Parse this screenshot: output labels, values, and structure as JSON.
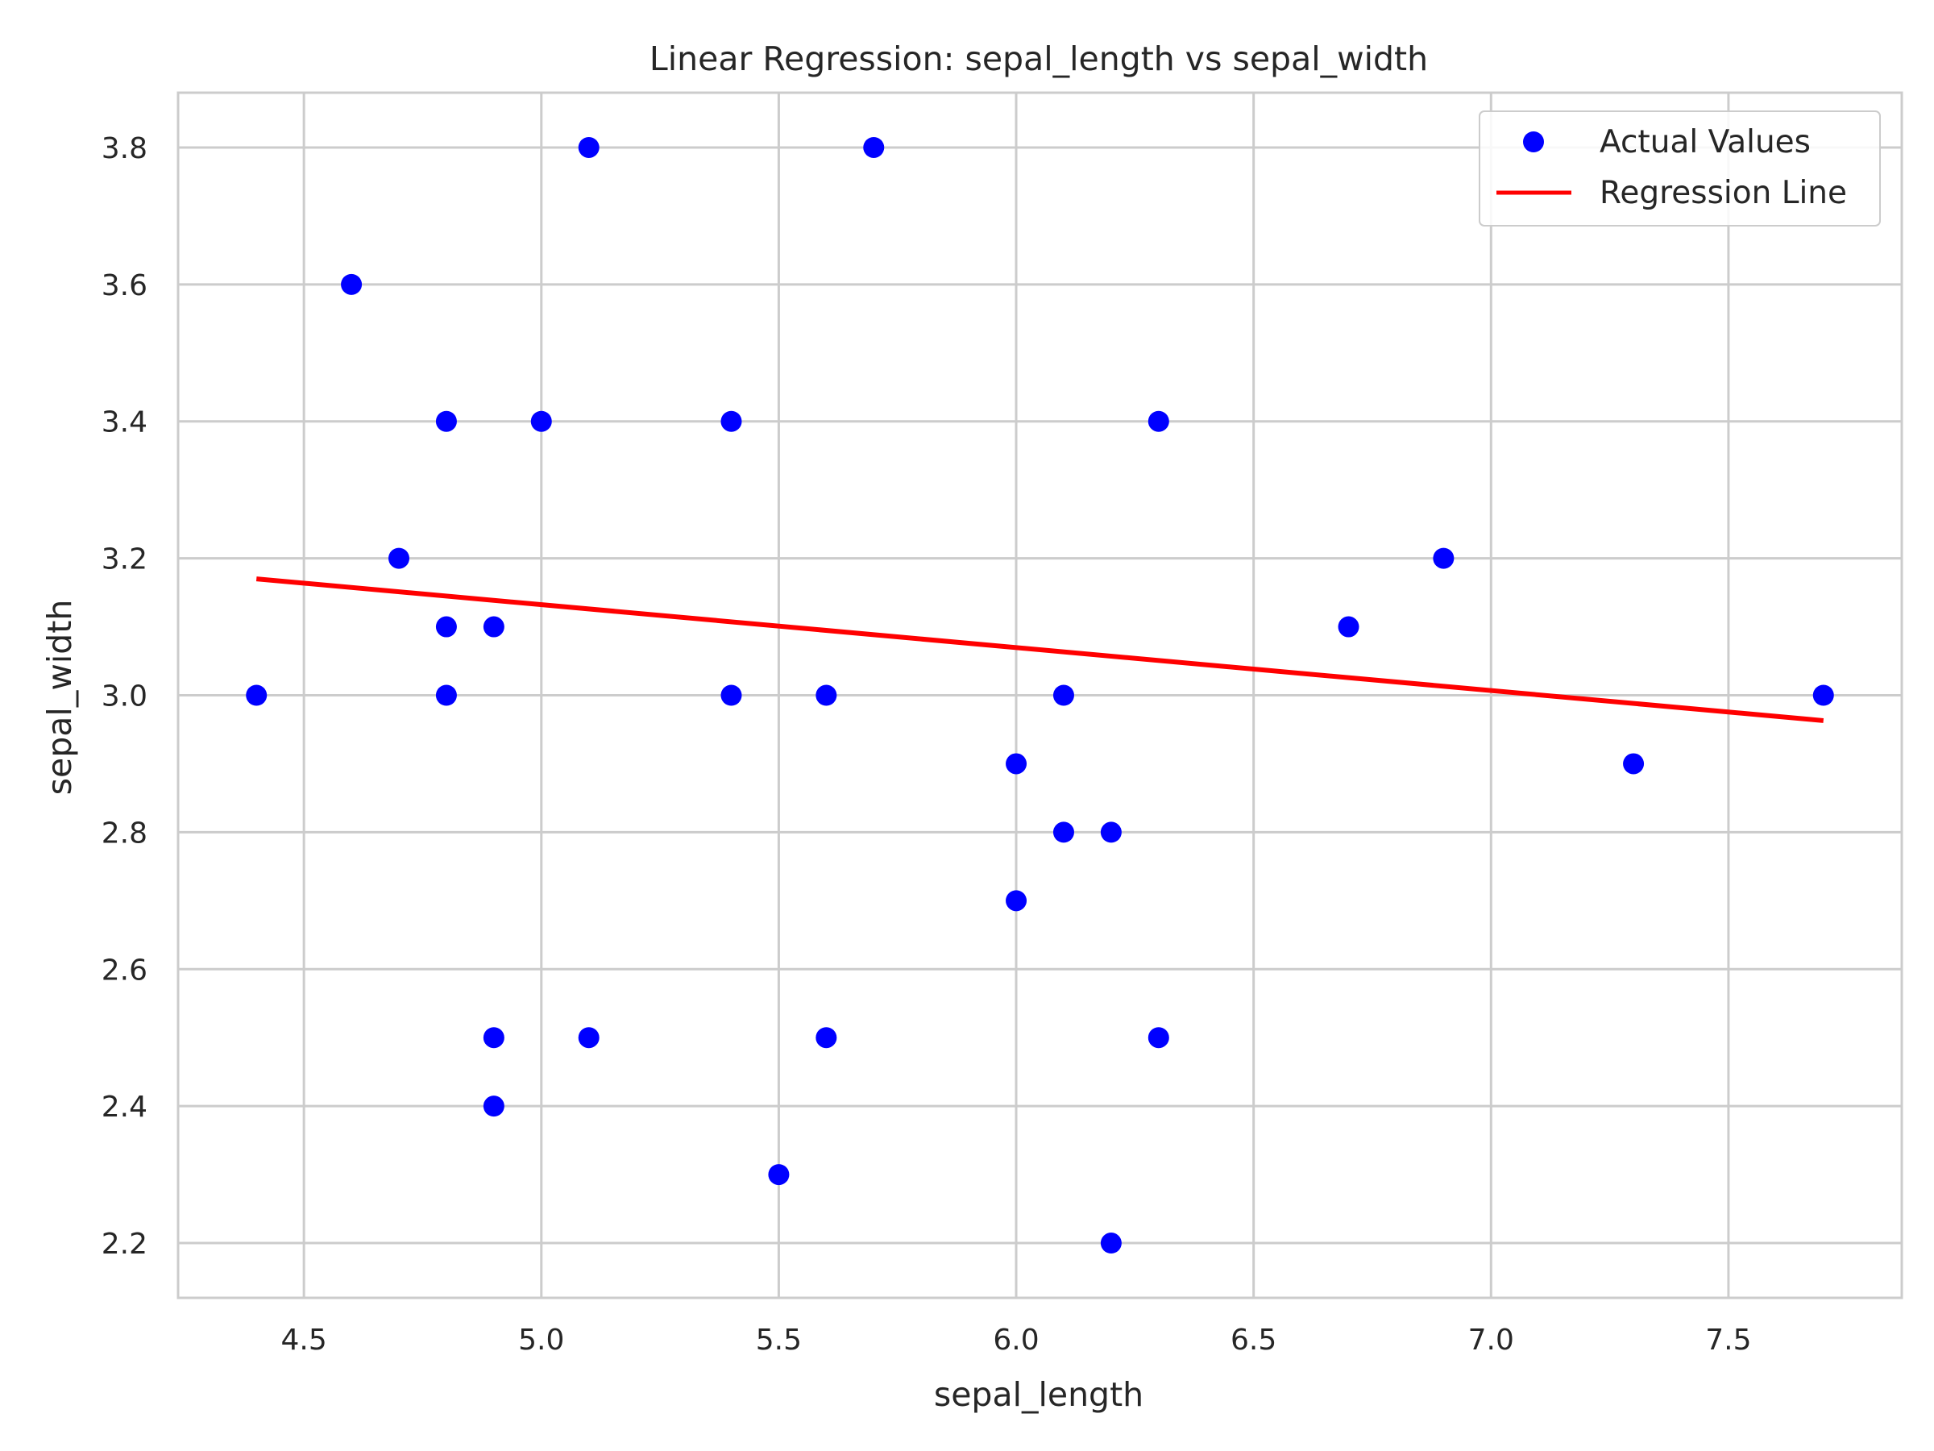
{
  "chart_data": {
    "type": "scatter",
    "title": "Linear Regression: sepal_length vs sepal_width",
    "xlabel": "sepal_length",
    "ylabel": "sepal_width",
    "xlim": [
      4.235,
      7.865
    ],
    "ylim": [
      2.12,
      3.88
    ],
    "xticks": [
      "4.5",
      "5.0",
      "5.5",
      "6.0",
      "6.5",
      "7.0",
      "7.5"
    ],
    "yticks": [
      "2.2",
      "2.4",
      "2.6",
      "2.8",
      "3.0",
      "3.2",
      "3.4",
      "3.6",
      "3.8"
    ],
    "grid": true,
    "legend_position": "top-right",
    "series": [
      {
        "name": "Actual Values",
        "kind": "scatter",
        "color": "#0000ff",
        "points": [
          [
            5.1,
            3.8
          ],
          [
            5.7,
            3.8
          ],
          [
            4.6,
            3.6
          ],
          [
            4.8,
            3.4
          ],
          [
            5.0,
            3.4
          ],
          [
            5.4,
            3.4
          ],
          [
            6.3,
            3.4
          ],
          [
            4.7,
            3.2
          ],
          [
            6.9,
            3.2
          ],
          [
            4.8,
            3.1
          ],
          [
            4.9,
            3.1
          ],
          [
            6.7,
            3.1
          ],
          [
            4.4,
            3.0
          ],
          [
            4.8,
            3.0
          ],
          [
            5.4,
            3.0
          ],
          [
            5.6,
            3.0
          ],
          [
            6.1,
            3.0
          ],
          [
            7.7,
            3.0
          ],
          [
            6.0,
            2.9
          ],
          [
            7.3,
            2.9
          ],
          [
            6.1,
            2.8
          ],
          [
            6.2,
            2.8
          ],
          [
            6.0,
            2.7
          ],
          [
            4.9,
            2.5
          ],
          [
            5.1,
            2.5
          ],
          [
            5.6,
            2.5
          ],
          [
            6.3,
            2.5
          ],
          [
            4.9,
            2.4
          ],
          [
            5.5,
            2.3
          ],
          [
            6.2,
            2.2
          ]
        ]
      },
      {
        "name": "Regression Line",
        "kind": "line",
        "color": "#ff0000",
        "x": [
          4.4,
          7.7
        ],
        "y": [
          3.17,
          2.963
        ]
      }
    ]
  }
}
